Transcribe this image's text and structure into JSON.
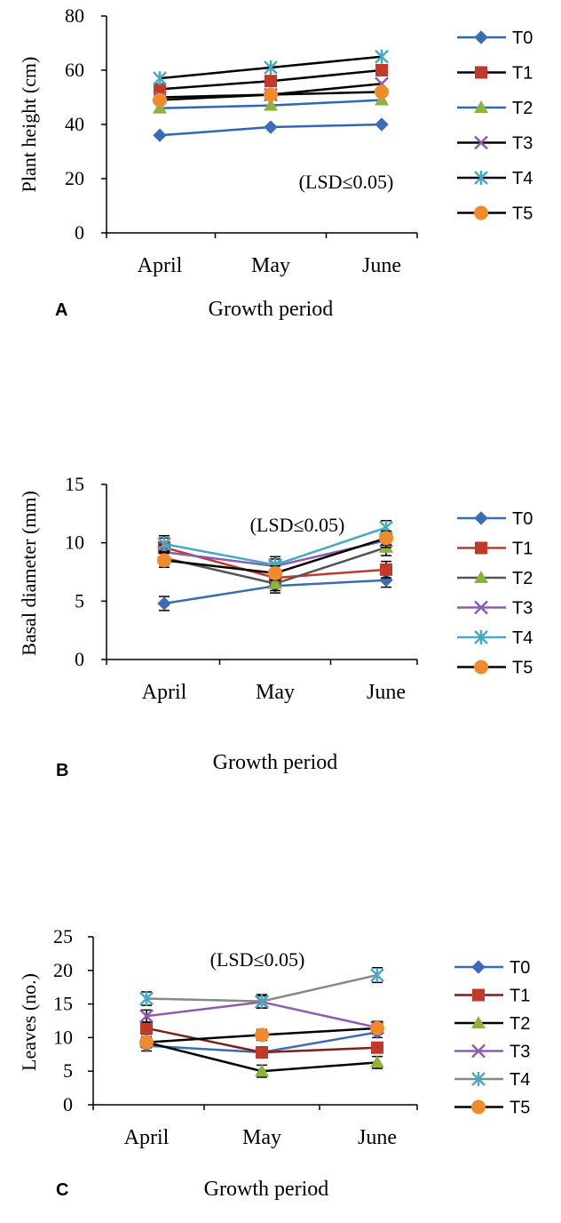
{
  "chart_data": [
    {
      "type": "line",
      "panel_label": "A",
      "ylabel": "Plant height  (cm)",
      "xlabel": "Growth period",
      "annotation": "(LSD≤0.05)",
      "categories": [
        "April",
        "May",
        "June"
      ],
      "ylim": [
        0,
        80
      ],
      "yticks": [
        "0",
        "20",
        "40",
        "60",
        "80"
      ],
      "error_bars": false,
      "series": [
        {
          "name": "T0",
          "values": [
            36,
            39,
            40
          ],
          "color": "#3B6DB5",
          "marker": "diamond"
        },
        {
          "name": "T1",
          "values": [
            53,
            56,
            60
          ],
          "color": "#C0392B",
          "marker": "square"
        },
        {
          "name": "T2",
          "values": [
            46,
            47,
            49
          ],
          "color": "#8DB33A",
          "marker": "triangle"
        },
        {
          "name": "T3",
          "values": [
            50,
            51,
            55
          ],
          "color": "#8E5BB0",
          "marker": "x"
        },
        {
          "name": "T4",
          "values": [
            57,
            61,
            65
          ],
          "color": "#46AAC4",
          "marker": "star"
        },
        {
          "name": "T5",
          "values": [
            49,
            51,
            52
          ],
          "color": "#F08A2A",
          "marker": "circle"
        }
      ],
      "line_colors": [
        "#2E67B8",
        "#000000",
        "#2E67B8",
        "#000000",
        "#000000",
        "#000000"
      ]
    },
    {
      "type": "line",
      "panel_label": "B",
      "ylabel": "Basal diameter (mm)",
      "xlabel": "Growth period",
      "annotation": "(LSD≤0.05)",
      "categories": [
        "April",
        "May",
        "June"
      ],
      "ylim": [
        0,
        15
      ],
      "yticks": [
        "0",
        "5",
        "10",
        "15"
      ],
      "error_bars": true,
      "series": [
        {
          "name": "T0",
          "values": [
            4.8,
            6.3,
            6.8
          ],
          "error": [
            0.6,
            0.6,
            0.6
          ],
          "color": "#3B6DB5",
          "marker": "diamond"
        },
        {
          "name": "T1",
          "values": [
            9.6,
            7.0,
            7.7
          ],
          "error": [
            0.8,
            0.6,
            0.7
          ],
          "color": "#C0392B",
          "marker": "square"
        },
        {
          "name": "T2",
          "values": [
            8.7,
            6.5,
            9.6
          ],
          "error": [
            0.6,
            0.6,
            0.7
          ],
          "color": "#8DB33A",
          "marker": "triangle"
        },
        {
          "name": "T3",
          "values": [
            9.2,
            8.0,
            10.2
          ],
          "error": [
            0.6,
            0.6,
            0.6
          ],
          "color": "#8E5BB0",
          "marker": "x"
        },
        {
          "name": "T4",
          "values": [
            9.9,
            8.1,
            11.3
          ],
          "error": [
            0.7,
            0.7,
            0.6
          ],
          "color": "#46AAC4",
          "marker": "star"
        },
        {
          "name": "T5",
          "values": [
            8.5,
            7.4,
            10.4
          ],
          "error": [
            0.6,
            0.6,
            0.6
          ],
          "color": "#F08A2A",
          "marker": "circle"
        }
      ],
      "line_colors": [
        "#3B6DB5",
        "#C0392B",
        "#555555",
        "#8E5BB0",
        "#46AAC4",
        "#000000"
      ]
    },
    {
      "type": "line",
      "panel_label": "C",
      "ylabel": "Leaves (no.)",
      "xlabel": "Growth period",
      "annotation": "(LSD≤0.05)",
      "categories": [
        "April",
        "May",
        "June"
      ],
      "ylim": [
        0,
        25
      ],
      "yticks": [
        "0",
        "5",
        "10",
        "15",
        "20",
        "25"
      ],
      "error_bars": true,
      "series": [
        {
          "name": "T0",
          "values": [
            8.8,
            7.8,
            10.8
          ],
          "error": [
            0.8,
            0.8,
            0.8
          ],
          "color": "#3B6DB5",
          "marker": "diamond"
        },
        {
          "name": "T1",
          "values": [
            11.4,
            7.8,
            8.5
          ],
          "error": [
            0.9,
            0.8,
            0.8
          ],
          "color": "#C0392B",
          "marker": "square"
        },
        {
          "name": "T2",
          "values": [
            9.3,
            5.0,
            6.3
          ],
          "error": [
            0.8,
            0.9,
            0.9
          ],
          "color": "#8DB33A",
          "marker": "triangle"
        },
        {
          "name": "T3",
          "values": [
            13.2,
            15.3,
            11.5
          ],
          "error": [
            0.9,
            0.9,
            0.9
          ],
          "color": "#8E5BB0",
          "marker": "x"
        },
        {
          "name": "T4",
          "values": [
            15.8,
            15.4,
            19.3
          ],
          "error": [
            1.0,
            1.0,
            1.1
          ],
          "color": "#46AAC4",
          "marker": "star"
        },
        {
          "name": "T5",
          "values": [
            9.3,
            10.4,
            11.4
          ],
          "error": [
            0.8,
            0.8,
            0.8
          ],
          "color": "#F08A2A",
          "marker": "circle"
        }
      ],
      "line_colors": [
        "#3B6DB5",
        "#7B1F1F",
        "#000000",
        "#8E5BB0",
        "#888888",
        "#000000"
      ]
    }
  ]
}
